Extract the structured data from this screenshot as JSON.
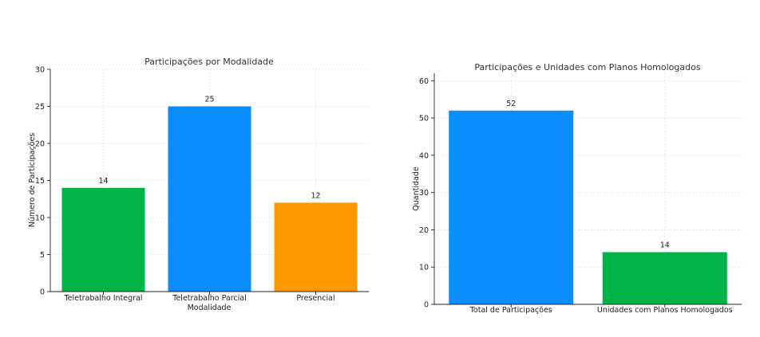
{
  "chart_data": [
    {
      "type": "bar",
      "title": "Participações por Modalidade",
      "xlabel": "Modalidade",
      "ylabel": "Número de Participações",
      "categories": [
        "Teletrabalho Integral",
        "Teletrabalho Parcial",
        "Presencial"
      ],
      "values": [
        14,
        25,
        12
      ],
      "data_labels": [
        "14",
        "25",
        "12"
      ],
      "colors": [
        "#00b347",
        "#0a8dff",
        "#ff9800"
      ],
      "ylim": [
        0,
        30
      ],
      "yticks": [
        0,
        5,
        10,
        15,
        20,
        25,
        30
      ],
      "grid": true
    },
    {
      "type": "bar",
      "title": "Participações e Unidades com Planos Homologados",
      "xlabel": "",
      "ylabel": "Quantidade",
      "categories": [
        "Total de Participações",
        "Unidades com Planos Homologados"
      ],
      "values": [
        52,
        14
      ],
      "data_labels": [
        "52",
        "14"
      ],
      "colors": [
        "#0a8dff",
        "#00b347"
      ],
      "ylim": [
        0,
        62
      ],
      "yticks": [
        0,
        10,
        20,
        30,
        40,
        50,
        60
      ],
      "grid": true
    }
  ]
}
